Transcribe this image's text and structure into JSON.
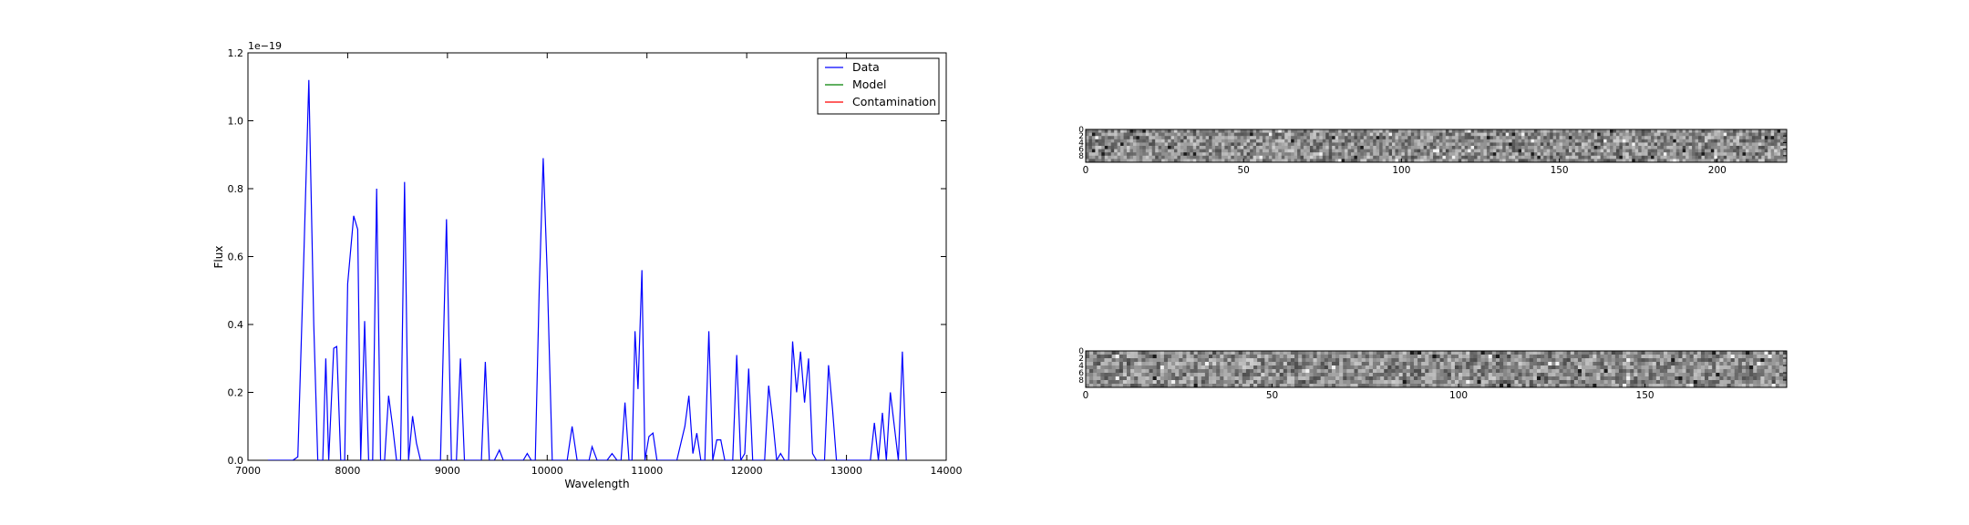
{
  "chart_data": [
    {
      "type": "line",
      "xlabel": "Wavelength",
      "ylabel": "Flux",
      "offset_text": "1e−19",
      "xlim": [
        7000,
        14000
      ],
      "ylim": [
        0.0,
        1.2
      ],
      "x_ticks": [
        7000,
        8000,
        9000,
        10000,
        11000,
        12000,
        13000,
        14000
      ],
      "x_tick_labels": [
        "7000",
        "8000",
        "9000",
        "10000",
        "11000",
        "12000",
        "13000",
        "14000"
      ],
      "y_ticks": [
        0.0,
        0.2,
        0.4,
        0.6,
        0.8,
        1.0,
        1.2
      ],
      "y_tick_labels": [
        "0.0",
        "0.2",
        "0.4",
        "0.6",
        "0.8",
        "1.0",
        "1.2"
      ],
      "legend": {
        "placement": "top-right",
        "entries": [
          {
            "label": "Data",
            "color": "#0000ff"
          },
          {
            "label": "Model",
            "color": "#008000"
          },
          {
            "label": "Contamination",
            "color": "#ff0000"
          }
        ]
      },
      "grid": false,
      "series": [
        {
          "name": "Data",
          "color": "#0000ff",
          "x": [
            7200,
            7450,
            7500,
            7560,
            7610,
            7660,
            7700,
            7750,
            7780,
            7810,
            7860,
            7890,
            7930,
            7970,
            8000,
            8060,
            8100,
            8130,
            8170,
            8210,
            8250,
            8290,
            8330,
            8370,
            8410,
            8450,
            8490,
            8530,
            8570,
            8610,
            8650,
            8690,
            8730,
            8780,
            8860,
            8930,
            8990,
            9040,
            9090,
            9130,
            9170,
            9230,
            9290,
            9340,
            9380,
            9420,
            9470,
            9520,
            9560,
            9620,
            9700,
            9760,
            9800,
            9840,
            9880,
            9920,
            9960,
            10000,
            10050,
            10100,
            10150,
            10200,
            10250,
            10300,
            10350,
            10420,
            10450,
            10500,
            10550,
            10600,
            10650,
            10700,
            10740,
            10780,
            10820,
            10850,
            10880,
            10910,
            10950,
            10980,
            11020,
            11060,
            11100,
            11140,
            11180,
            11250,
            11300,
            11340,
            11380,
            11420,
            11460,
            11500,
            11540,
            11580,
            11620,
            11660,
            11700,
            11740,
            11780,
            11820,
            11860,
            11900,
            11940,
            11980,
            12020,
            12060,
            12100,
            12140,
            12180,
            12220,
            12260,
            12300,
            12340,
            12380,
            12420,
            12460,
            12500,
            12540,
            12580,
            12620,
            12660,
            12700,
            12740,
            12780,
            12820,
            12860,
            12900,
            12940,
            12980,
            13020,
            13100,
            13150,
            13200,
            13240,
            13280,
            13320,
            13360,
            13400,
            13440,
            13480,
            13520,
            13560,
            13600
          ],
          "y": [
            0.0,
            0.0,
            0.01,
            0.6,
            1.12,
            0.4,
            0.0,
            0.0,
            0.3,
            0.0,
            0.33,
            0.335,
            0.0,
            0.0,
            0.52,
            0.72,
            0.68,
            0.0,
            0.41,
            0.0,
            0.0,
            0.8,
            0.0,
            0.0,
            0.19,
            0.1,
            0.0,
            0.0,
            0.82,
            0.0,
            0.13,
            0.05,
            0.0,
            0.0,
            0.0,
            0.0,
            0.71,
            0.0,
            0.0,
            0.3,
            0.0,
            0.0,
            0.0,
            0.0,
            0.29,
            0.0,
            0.0,
            0.03,
            0.0,
            0.0,
            0.0,
            0.0,
            0.02,
            0.0,
            0.0,
            0.5,
            0.89,
            0.55,
            0.0,
            0.0,
            0.0,
            0.0,
            0.1,
            0.0,
            0.0,
            0.0,
            0.04,
            0.0,
            0.0,
            0.0,
            0.02,
            0.0,
            0.0,
            0.17,
            0.0,
            0.0,
            0.38,
            0.21,
            0.56,
            0.0,
            0.07,
            0.08,
            0.0,
            0.0,
            0.0,
            0.0,
            0.0,
            0.05,
            0.1,
            0.19,
            0.02,
            0.08,
            0.0,
            0.0,
            0.38,
            0.0,
            0.06,
            0.06,
            0.0,
            0.0,
            0.0,
            0.31,
            0.0,
            0.02,
            0.27,
            0.0,
            0.0,
            0.0,
            0.0,
            0.22,
            0.12,
            0.0,
            0.02,
            0.0,
            0.0,
            0.35,
            0.2,
            0.32,
            0.17,
            0.3,
            0.02,
            0.0,
            0.0,
            0.0,
            0.28,
            0.15,
            0.0,
            0.0,
            0.0,
            0.0,
            0.0,
            0.0,
            0.0,
            0.0,
            0.11,
            0.0,
            0.14,
            0.0,
            0.2,
            0.1,
            0.0,
            0.32,
            0.0
          ]
        },
        {
          "name": "Model",
          "color": "#008000",
          "x": [],
          "y": []
        },
        {
          "name": "Contamination",
          "color": "#ff0000",
          "x": [],
          "y": []
        }
      ]
    },
    {
      "type": "heatmap",
      "colormap": "gray",
      "xlim": [
        0,
        222
      ],
      "ylim": [
        0,
        10
      ],
      "x_ticks": [
        0,
        50,
        100,
        150,
        200
      ],
      "x_tick_labels": [
        "0",
        "50",
        "100",
        "150",
        "200"
      ],
      "y_ticks": [
        0,
        2,
        4,
        6,
        8
      ],
      "y_tick_labels": [
        "0",
        "2",
        "4",
        "6",
        "8"
      ]
    },
    {
      "type": "heatmap",
      "colormap": "gray",
      "xlim": [
        0,
        188
      ],
      "ylim": [
        0,
        10
      ],
      "x_ticks": [
        0,
        50,
        100,
        150
      ],
      "x_tick_labels": [
        "0",
        "50",
        "100",
        "150"
      ],
      "y_ticks": [
        0,
        2,
        4,
        6,
        8
      ],
      "y_tick_labels": [
        "0",
        "2",
        "4",
        "6",
        "8"
      ]
    }
  ]
}
